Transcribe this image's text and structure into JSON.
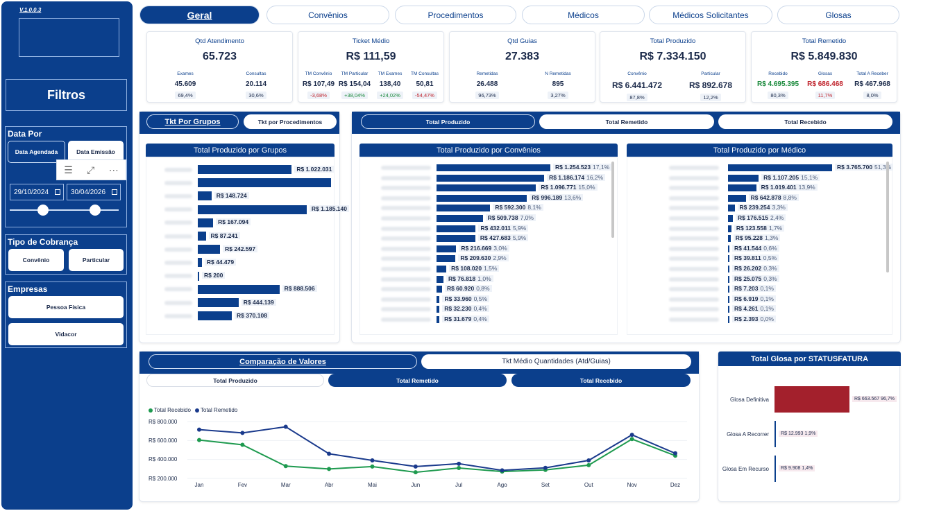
{
  "version": "V.1.0.0.3",
  "sidebar": {
    "filters_title": "Filtros",
    "data_por": {
      "title": "Data Por",
      "options": [
        "Data Agendada",
        "Data Emissão"
      ],
      "start_date": "29/10/2024",
      "end_date": "30/04/2026"
    },
    "tipo_cobranca": {
      "title": "Tipo de Cobrança",
      "options": [
        "Convênio",
        "Particular"
      ]
    },
    "empresas": {
      "title": "Empresas",
      "options": [
        "Pessoa Física",
        "Vidacor"
      ]
    }
  },
  "tabs": [
    "Geral",
    "Convênios",
    "Procedimentos",
    "Médicos",
    "Médicos Solicitantes",
    "Glosas"
  ],
  "kpis": [
    {
      "title": "Qtd Atendimento",
      "value": "65.723",
      "subs": [
        {
          "label": "Exames",
          "value": "45.609",
          "pct": "69,4%"
        },
        {
          "label": "Consultas",
          "value": "20.114",
          "pct": "30,6%"
        }
      ]
    },
    {
      "title": "Ticket Médio",
      "value": "R$ 111,59",
      "subs": [
        {
          "label": "TM Convênio",
          "value": "R$ 107,49",
          "pct": "-3,68%"
        },
        {
          "label": "TM Particular",
          "value": "R$ 154,04",
          "pct": "+38,04%"
        },
        {
          "label": "TM Exames",
          "value": "138,40",
          "pct": "+24,02%"
        },
        {
          "label": "TM Consultas",
          "value": "50,81",
          "pct": "-54,47%"
        }
      ]
    },
    {
      "title": "Qtd Guias",
      "value": "27.383",
      "subs": [
        {
          "label": "Remetidas",
          "value": "26.488",
          "pct": "96,73%"
        },
        {
          "label": "N Remetidas",
          "value": "895",
          "pct": "3,27%"
        }
      ]
    },
    {
      "title": "Total Produzido",
      "value": "R$ 7.334.150",
      "subs": [
        {
          "label": "Convênio",
          "value": "R$ 6.441.472",
          "pct": "87,8%"
        },
        {
          "label": "Particular",
          "value": "R$ 892.678",
          "pct": "12,2%"
        }
      ]
    },
    {
      "title": "Total Remetido",
      "value": "R$ 5.849.830",
      "subs": [
        {
          "label": "Recebido",
          "value": "R$ 4.695.395",
          "pct": "80,3%"
        },
        {
          "label": "Glosas",
          "value": "R$ 686.468",
          "pct": "11,7%"
        },
        {
          "label": "Total A Receber",
          "value": "R$ 467.968",
          "pct": "8,0%"
        }
      ]
    }
  ],
  "grupos_panel": {
    "tabs": [
      "Tkt Por Grupos",
      "Tkt por Procedimentos"
    ],
    "chart_title": "Total Produzido por Grupos",
    "bars": [
      {
        "value": 1022031,
        "label": "R$ 1.022.031"
      },
      {
        "value": 1450000,
        "label": ""
      },
      {
        "value": 148724,
        "label": "R$ 148.724"
      },
      {
        "value": 1185140,
        "label": "R$ 1.185.140"
      },
      {
        "value": 167094,
        "label": "R$ 167.094"
      },
      {
        "value": 87241,
        "label": "R$ 87.241"
      },
      {
        "value": 242597,
        "label": "R$ 242.597"
      },
      {
        "value": 44479,
        "label": "R$ 44.479"
      },
      {
        "value": 200,
        "label": "R$ 200"
      },
      {
        "value": 888506,
        "label": "R$ 888.506"
      },
      {
        "value": 444139,
        "label": "R$ 444.139"
      },
      {
        "value": 370108,
        "label": "R$ 370.108"
      }
    ]
  },
  "mid_panel": {
    "tabs": [
      "Total Produzido",
      "Total Remetido",
      "Total Recebido"
    ],
    "convenios": {
      "title": "Total Produzido por Convênios",
      "bars": [
        {
          "value": 1254523,
          "label": "R$ 1.254.523",
          "pct": "17,1%"
        },
        {
          "value": 1186174,
          "label": "R$ 1.186.174",
          "pct": "16,2%"
        },
        {
          "value": 1096771,
          "label": "R$ 1.096.771",
          "pct": "15,0%"
        },
        {
          "value": 996189,
          "label": "R$ 996.189",
          "pct": "13,6%"
        },
        {
          "value": 592300,
          "label": "R$ 592.300",
          "pct": "8,1%"
        },
        {
          "value": 509738,
          "label": "R$ 509.738",
          "pct": "7,0%"
        },
        {
          "value": 432011,
          "label": "R$ 432.011",
          "pct": "5,9%"
        },
        {
          "value": 427683,
          "label": "R$ 427.683",
          "pct": "5,9%"
        },
        {
          "value": 216669,
          "label": "R$ 216.669",
          "pct": "3,0%"
        },
        {
          "value": 209630,
          "label": "R$ 209.630",
          "pct": "2,9%"
        },
        {
          "value": 108020,
          "label": "R$ 108.020",
          "pct": "1,5%"
        },
        {
          "value": 76818,
          "label": "R$ 76.818",
          "pct": "1,0%"
        },
        {
          "value": 60920,
          "label": "R$ 60.920",
          "pct": "0,8%"
        },
        {
          "value": 33960,
          "label": "R$ 33.960",
          "pct": "0,5%"
        },
        {
          "value": 32230,
          "label": "R$ 32.230",
          "pct": "0,4%"
        },
        {
          "value": 31679,
          "label": "R$ 31.679",
          "pct": "0,4%"
        }
      ]
    },
    "medicos": {
      "title": "Total Produzido por Médico",
      "bars": [
        {
          "value": 3765700,
          "label": "R$ 3.765.700",
          "pct": "51,3%"
        },
        {
          "value": 1107205,
          "label": "R$ 1.107.205",
          "pct": "15,1%"
        },
        {
          "value": 1019401,
          "label": "R$ 1.019.401",
          "pct": "13,9%"
        },
        {
          "value": 642878,
          "label": "R$ 642.878",
          "pct": "8,8%"
        },
        {
          "value": 239254,
          "label": "R$ 239.254",
          "pct": "3,3%"
        },
        {
          "value": 176515,
          "label": "R$ 176.515",
          "pct": "2,4%"
        },
        {
          "value": 123558,
          "label": "R$ 123.558",
          "pct": "1,7%"
        },
        {
          "value": 95228,
          "label": "R$ 95.228",
          "pct": "1,3%"
        },
        {
          "value": 41544,
          "label": "R$ 41.544",
          "pct": "0,6%"
        },
        {
          "value": 39811,
          "label": "R$ 39.811",
          "pct": "0,5%"
        },
        {
          "value": 26202,
          "label": "R$ 26.202",
          "pct": "0,3%"
        },
        {
          "value": 25075,
          "label": "R$ 25.075",
          "pct": "0,3%"
        },
        {
          "value": 7203,
          "label": "R$ 7.203",
          "pct": "0,1%"
        },
        {
          "value": 6919,
          "label": "R$ 6.919",
          "pct": "0,1%"
        },
        {
          "value": 4261,
          "label": "R$ 4.261",
          "pct": "0,1%"
        },
        {
          "value": 2393,
          "label": "R$ 2.393",
          "pct": "0,0%"
        }
      ]
    }
  },
  "comparacao_panel": {
    "tabs": [
      "Comparação de Valores",
      "Tkt Médio Quantidades (Atd/Guias)"
    ],
    "segments": [
      "Total Produzido",
      "Total Remetido",
      "Total Recebido"
    ]
  },
  "chart_data": {
    "type": "line",
    "x": [
      "Jan",
      "Fev",
      "Mar",
      "Abr",
      "Mai",
      "Jun",
      "Jul",
      "Ago",
      "Set",
      "Out",
      "Nov",
      "Dez"
    ],
    "series": [
      {
        "name": "Total Recebido",
        "color": "#1e9a4f",
        "values": [
          605000,
          555000,
          330000,
          300000,
          325000,
          265000,
          310000,
          272000,
          290000,
          340000,
          615000,
          440000
        ]
      },
      {
        "name": "Total Remetido",
        "color": "#1a3a8c",
        "values": [
          715000,
          680000,
          745000,
          460000,
          390000,
          325000,
          355000,
          285000,
          312000,
          390000,
          660000,
          465000
        ]
      }
    ],
    "yticks": [
      "R$ 800.000",
      "R$ 600.000",
      "R$ 400.000",
      "R$ 200.000"
    ],
    "ytick_values": [
      800000,
      600000,
      400000,
      200000
    ],
    "ylim": [
      200000,
      800000
    ]
  },
  "glosa_panel": {
    "title": "Total Glosa por STATUSFATURA",
    "bars": [
      {
        "label": "Glosa Definitiva",
        "value": 663567,
        "value_label": "R$ 663.567",
        "pct": "96,7%",
        "color": "#a3202c"
      },
      {
        "label": "Glosa A Recorrer",
        "value": 12993,
        "value_label": "R$ 12.993",
        "pct": "1,9%",
        "color": "#0b3f8c"
      },
      {
        "label": "Glosa Em Recurso",
        "value": 9908,
        "value_label": "R$ 9.908",
        "pct": "1,4%",
        "color": "#0b3f8c"
      }
    ]
  }
}
